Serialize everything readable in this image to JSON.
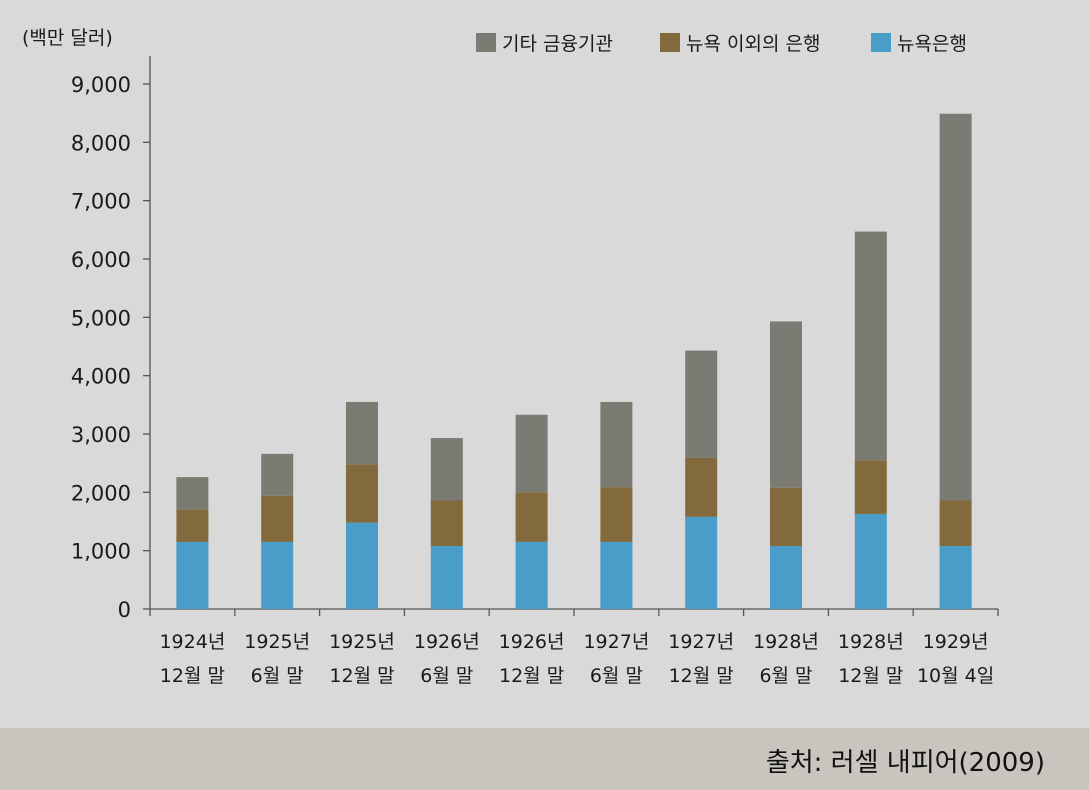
{
  "chart_data": {
    "type": "bar",
    "stacked": true,
    "unit_label": "(백만 달러)",
    "categories": [
      [
        "1924년",
        "12월 말"
      ],
      [
        "1925년",
        "6월 말"
      ],
      [
        "1925년",
        "12월 말"
      ],
      [
        "1926년",
        "6월 말"
      ],
      [
        "1926년",
        "12월 말"
      ],
      [
        "1927년",
        "6월 말"
      ],
      [
        "1927년",
        "12월 말"
      ],
      [
        "1928년",
        "6월 말"
      ],
      [
        "1928년",
        "12월 말"
      ],
      [
        "1929년",
        "10월 4일"
      ]
    ],
    "series": [
      {
        "name": "뉴욕은행",
        "color": "#4a9cc9",
        "values": [
          1150,
          1150,
          1480,
          1080,
          1150,
          1150,
          1580,
          1080,
          1630,
          1080
        ]
      },
      {
        "name": "뉴욕 이외의 은행",
        "color": "#836a3c",
        "values": [
          560,
          790,
          1000,
          780,
          850,
          940,
          1010,
          1000,
          920,
          780
        ]
      },
      {
        "name": "기타 금융기관",
        "color": "#7b7b73",
        "values": [
          550,
          720,
          1070,
          1070,
          1330,
          1460,
          1840,
          2850,
          3920,
          6630
        ]
      }
    ],
    "legend_order": [
      "기타 금융기관",
      "뉴욕 이외의 은행",
      "뉴욕은행"
    ],
    "legend_position": "top-right",
    "ylim": [
      0,
      9000
    ],
    "yticks": [
      0,
      1000,
      2000,
      3000,
      4000,
      5000,
      6000,
      7000,
      8000,
      9000
    ],
    "ytick_labels": [
      "0",
      "1,000",
      "2,000",
      "3,000",
      "4,000",
      "5,000",
      "6,000",
      "7,000",
      "8,000",
      "9,000"
    ],
    "grid": false
  },
  "source": "출처: 러셀 내피어(2009)"
}
